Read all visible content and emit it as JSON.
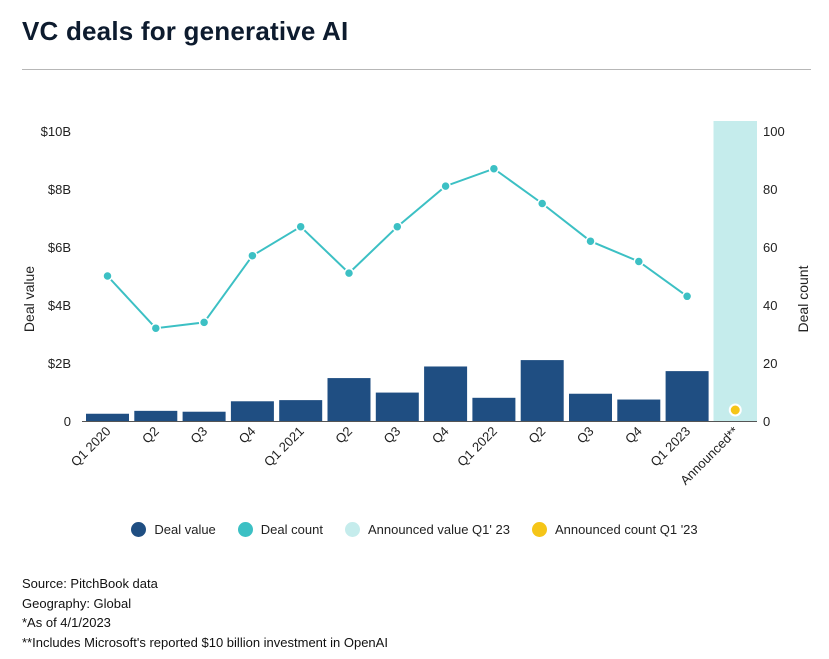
{
  "title": "VC deals for generative AI",
  "legend": [
    {
      "label": "Deal value",
      "color": "#1f4e82"
    },
    {
      "label": "Deal count",
      "color": "#3cc0c4"
    },
    {
      "label": "Announced value Q1' 23",
      "color": "#c5ecec"
    },
    {
      "label": "Announced count Q1 '23",
      "color": "#f5c518"
    }
  ],
  "footnotes": [
    "Source: PitchBook data",
    "Geography: Global",
    "*As of 4/1/2023",
    "**Includes Microsoft's reported $10 billion investment in OpenAI"
  ],
  "chart_data": {
    "type": "bar+line",
    "categories": [
      "Q1 2020",
      "Q2",
      "Q3",
      "Q4",
      "Q1 2021",
      "Q2",
      "Q3",
      "Q4",
      "Q1 2022",
      "Q2",
      "Q3",
      "Q4",
      "Q1 2023",
      "Announced**"
    ],
    "series": [
      {
        "name": "Deal value",
        "type": "bar",
        "axis": "left",
        "color": "#1f4e82",
        "values": [
          0.25,
          0.35,
          0.32,
          0.68,
          0.72,
          1.48,
          0.98,
          1.88,
          0.8,
          2.1,
          0.94,
          0.74,
          1.72,
          null
        ]
      },
      {
        "name": "Deal count",
        "type": "line",
        "axis": "right",
        "color": "#3cc0c4",
        "values": [
          50,
          32,
          34,
          57,
          67,
          51,
          67,
          81,
          87,
          75,
          62,
          55,
          43,
          null
        ]
      },
      {
        "name": "Announced value Q1' 23",
        "type": "bar",
        "axis": "left",
        "color": "#c5ecec",
        "values": [
          null,
          null,
          null,
          null,
          null,
          null,
          null,
          null,
          null,
          null,
          null,
          null,
          null,
          10.5
        ]
      },
      {
        "name": "Announced count Q1 '23",
        "type": "point",
        "axis": "right",
        "color": "#f5c518",
        "values": [
          null,
          null,
          null,
          null,
          null,
          null,
          null,
          null,
          null,
          null,
          null,
          null,
          null,
          1
        ]
      }
    ],
    "y_left": {
      "label": "Deal value",
      "ticks": [
        0,
        2,
        4,
        6,
        8,
        10
      ],
      "tick_labels": [
        "0",
        "$2B",
        "$4B",
        "$6B",
        "$8B",
        "$10B"
      ],
      "range": [
        0,
        10
      ]
    },
    "y_right": {
      "label": "Deal count",
      "ticks": [
        0,
        20,
        40,
        60,
        80,
        100
      ],
      "tick_labels": [
        "0",
        "20",
        "40",
        "60",
        "80",
        "100"
      ],
      "range": [
        0,
        100
      ]
    },
    "grid": false,
    "legend_position": "bottom"
  }
}
